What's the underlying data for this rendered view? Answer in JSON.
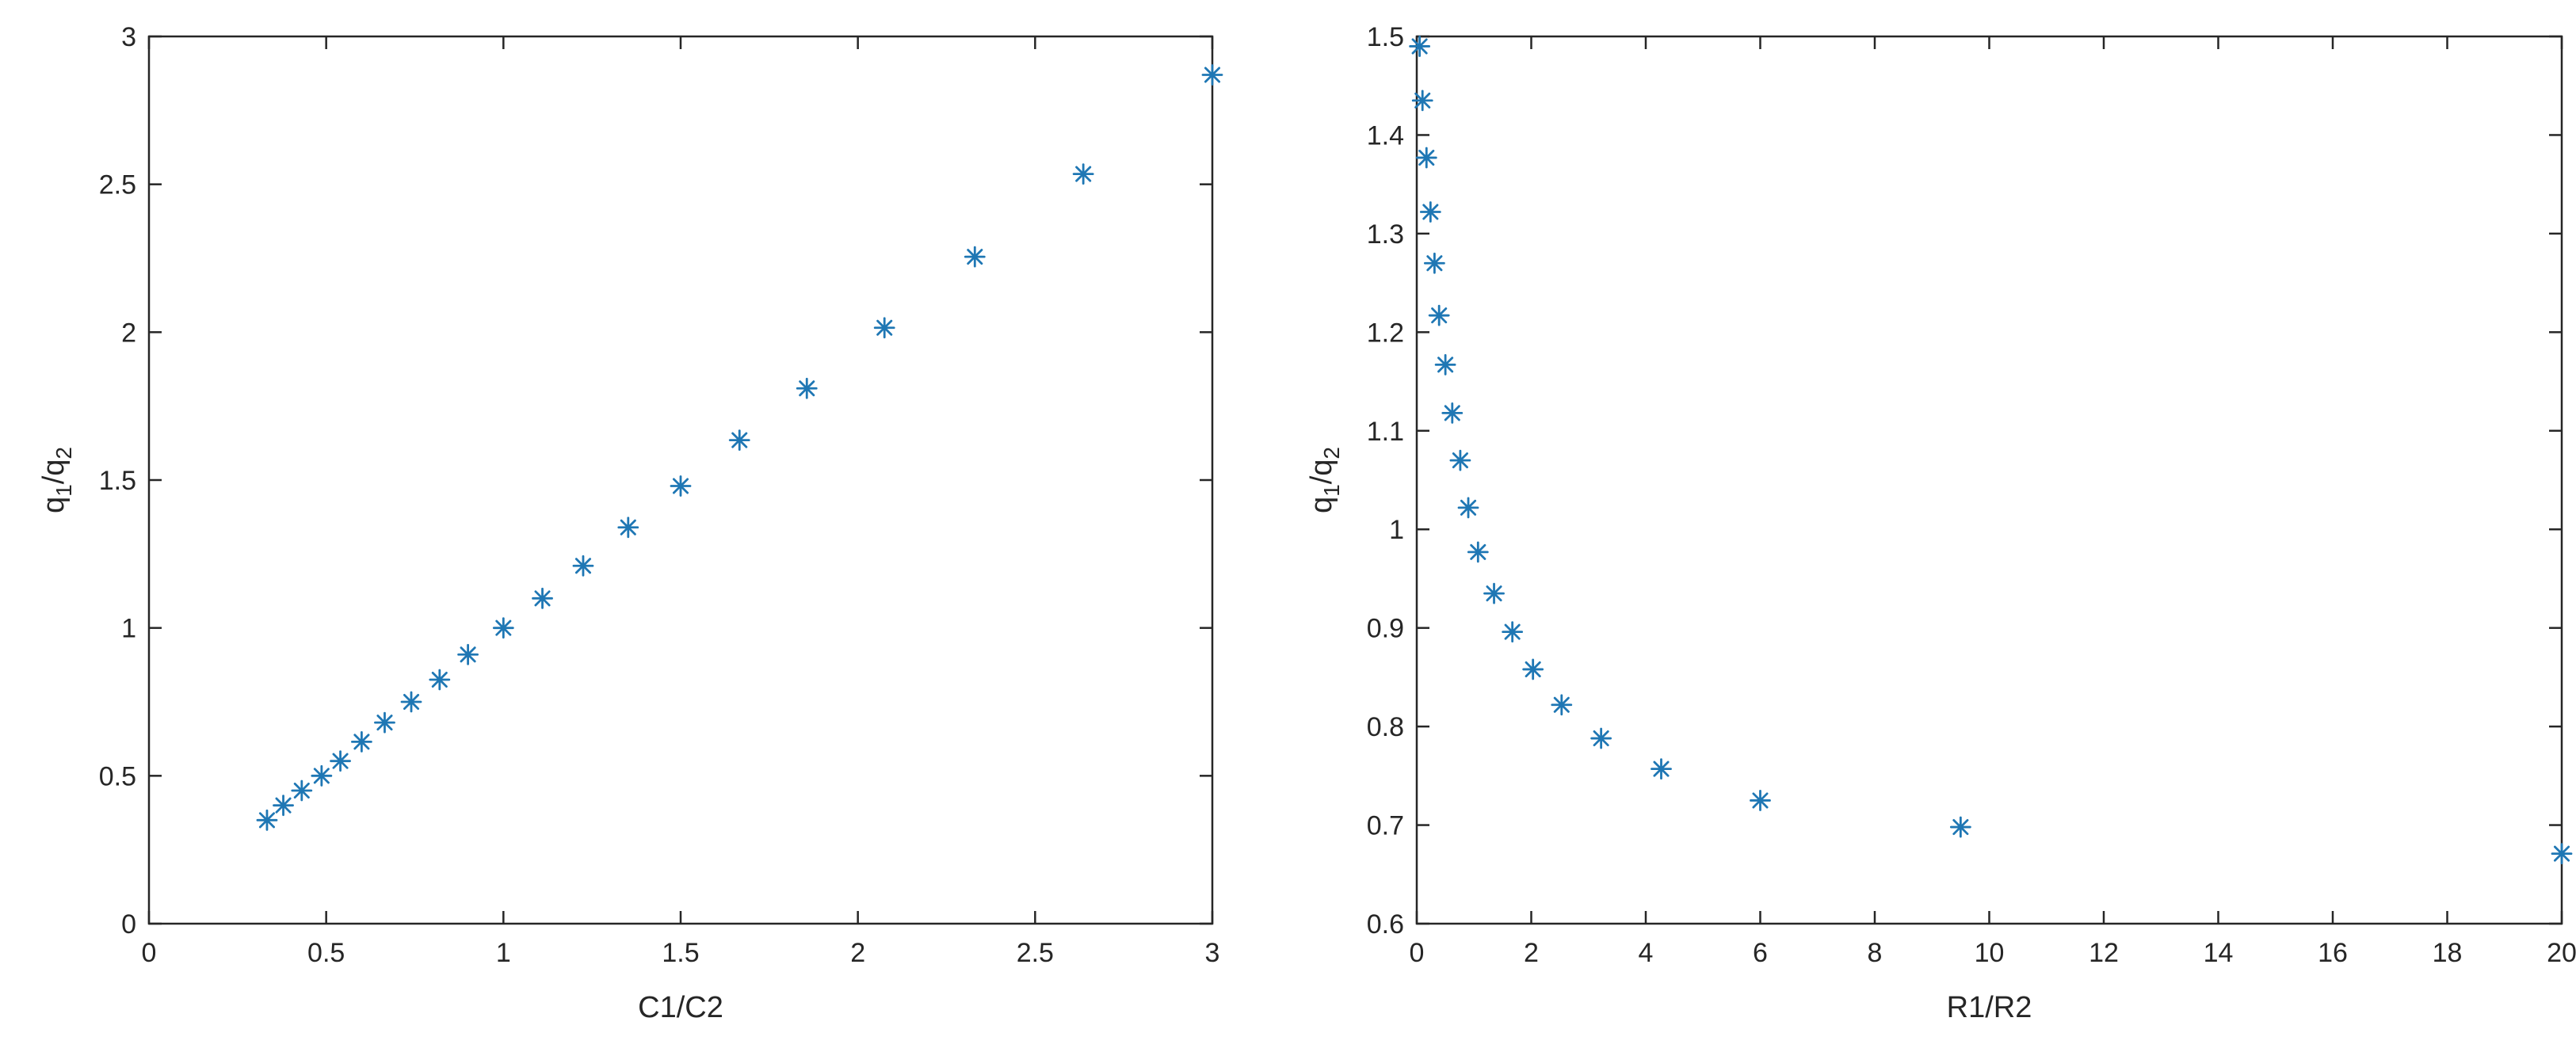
{
  "chart_data": [
    {
      "type": "scatter",
      "xlabel": "C1/C2",
      "ylabel": {
        "base": "q",
        "sub1": "1",
        "sep": "/q",
        "sub2": "2"
      },
      "xlim": [
        0,
        3
      ],
      "ylim": [
        0,
        3
      ],
      "xticks": [
        "0",
        "0.5",
        "1",
        "1.5",
        "2",
        "2.5",
        "3"
      ],
      "yticks": [
        "0",
        "0.5",
        "1",
        "1.5",
        "2",
        "2.5",
        "3"
      ],
      "marker": "asterisk",
      "color": "#1f77b4",
      "grid": false,
      "series": [
        {
          "x": [
            0.333,
            0.379,
            0.431,
            0.487,
            0.54,
            0.6,
            0.665,
            0.74,
            0.82,
            0.9,
            1.0,
            1.11,
            1.225,
            1.352,
            1.5,
            1.666,
            1.856,
            2.075,
            2.33,
            2.636,
            3.0
          ],
          "y": [
            0.35,
            0.4,
            0.45,
            0.5,
            0.55,
            0.615,
            0.68,
            0.75,
            0.825,
            0.91,
            1.0,
            1.1,
            1.21,
            1.34,
            1.48,
            1.635,
            1.81,
            2.015,
            2.255,
            2.535,
            2.87
          ]
        }
      ]
    },
    {
      "type": "scatter",
      "xlabel": "R1/R2",
      "ylabel": {
        "base": "q",
        "sub1": "1",
        "sep": "/q",
        "sub2": "2"
      },
      "xlim": [
        0,
        20
      ],
      "ylim": [
        0.6,
        1.5
      ],
      "xticks": [
        "0",
        "2",
        "4",
        "6",
        "8",
        "10",
        "12",
        "14",
        "16",
        "18",
        "20"
      ],
      "yticks": [
        "0.6",
        "0.7",
        "0.8",
        "0.9",
        "1",
        "1.1",
        "1.2",
        "1.3",
        "1.4",
        "1.5"
      ],
      "marker": "asterisk",
      "color": "#1f77b4",
      "grid": false,
      "series": [
        {
          "x": [
            0.05,
            0.1,
            0.17,
            0.24,
            0.31,
            0.39,
            0.5,
            0.62,
            0.76,
            0.9,
            1.07,
            1.35,
            1.67,
            2.03,
            2.53,
            3.22,
            4.27,
            6.0,
            9.5,
            20.0
          ],
          "y": [
            1.49,
            1.435,
            1.377,
            1.322,
            1.27,
            1.217,
            1.167,
            1.118,
            1.07,
            1.022,
            0.977,
            0.935,
            0.896,
            0.858,
            0.822,
            0.788,
            0.757,
            0.725,
            0.698,
            0.671
          ]
        }
      ]
    }
  ]
}
